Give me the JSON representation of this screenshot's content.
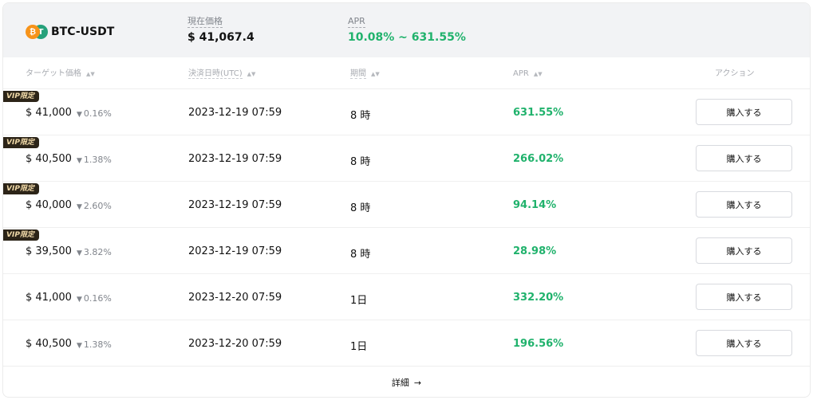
{
  "header": {
    "pair": "BTC-USDT",
    "coin_left_icon": "btc-coin-icon",
    "coin_right_icon": "usdt-coin-icon",
    "current_price_label": "現在価格",
    "current_price_value": "$ 41,067.4",
    "apr_label": "APR",
    "apr_value": "10.08% ~ 631.55%"
  },
  "columns": {
    "target_price": "ターゲット価格",
    "settlement_date": "決済日時(UTC)",
    "term": "期間",
    "apr": "APR",
    "action": "アクション"
  },
  "rows": [
    {
      "vip": "VIP限定",
      "price": "$ 41,000",
      "diff": "0.16%",
      "date": "2023-12-19 07:59",
      "term": "8 時",
      "apr": "631.55%",
      "button": "購入する"
    },
    {
      "vip": "VIP限定",
      "price": "$ 40,500",
      "diff": "1.38%",
      "date": "2023-12-19 07:59",
      "term": "8 時",
      "apr": "266.02%",
      "button": "購入する"
    },
    {
      "vip": "VIP限定",
      "price": "$ 40,000",
      "diff": "2.60%",
      "date": "2023-12-19 07:59",
      "term": "8 時",
      "apr": "94.14%",
      "button": "購入する"
    },
    {
      "vip": "VIP限定",
      "price": "$ 39,500",
      "diff": "3.82%",
      "date": "2023-12-19 07:59",
      "term": "8 時",
      "apr": "28.98%",
      "button": "購入する"
    },
    {
      "vip": "",
      "price": "$ 41,000",
      "diff": "0.16%",
      "date": "2023-12-20 07:59",
      "term": "1日",
      "apr": "332.20%",
      "button": "購入する"
    },
    {
      "vip": "",
      "price": "$ 40,500",
      "diff": "1.38%",
      "date": "2023-12-20 07:59",
      "term": "1日",
      "apr": "196.56%",
      "button": "購入する"
    }
  ],
  "footer": {
    "details_label": "詳細",
    "details_icon": "arrow-right-icon"
  },
  "colors": {
    "positive_green": "#20b26c",
    "vip_badge_bg": "#2c2418",
    "vip_badge_text": "#f0d9a8",
    "header_bg": "#f2f3f5"
  }
}
